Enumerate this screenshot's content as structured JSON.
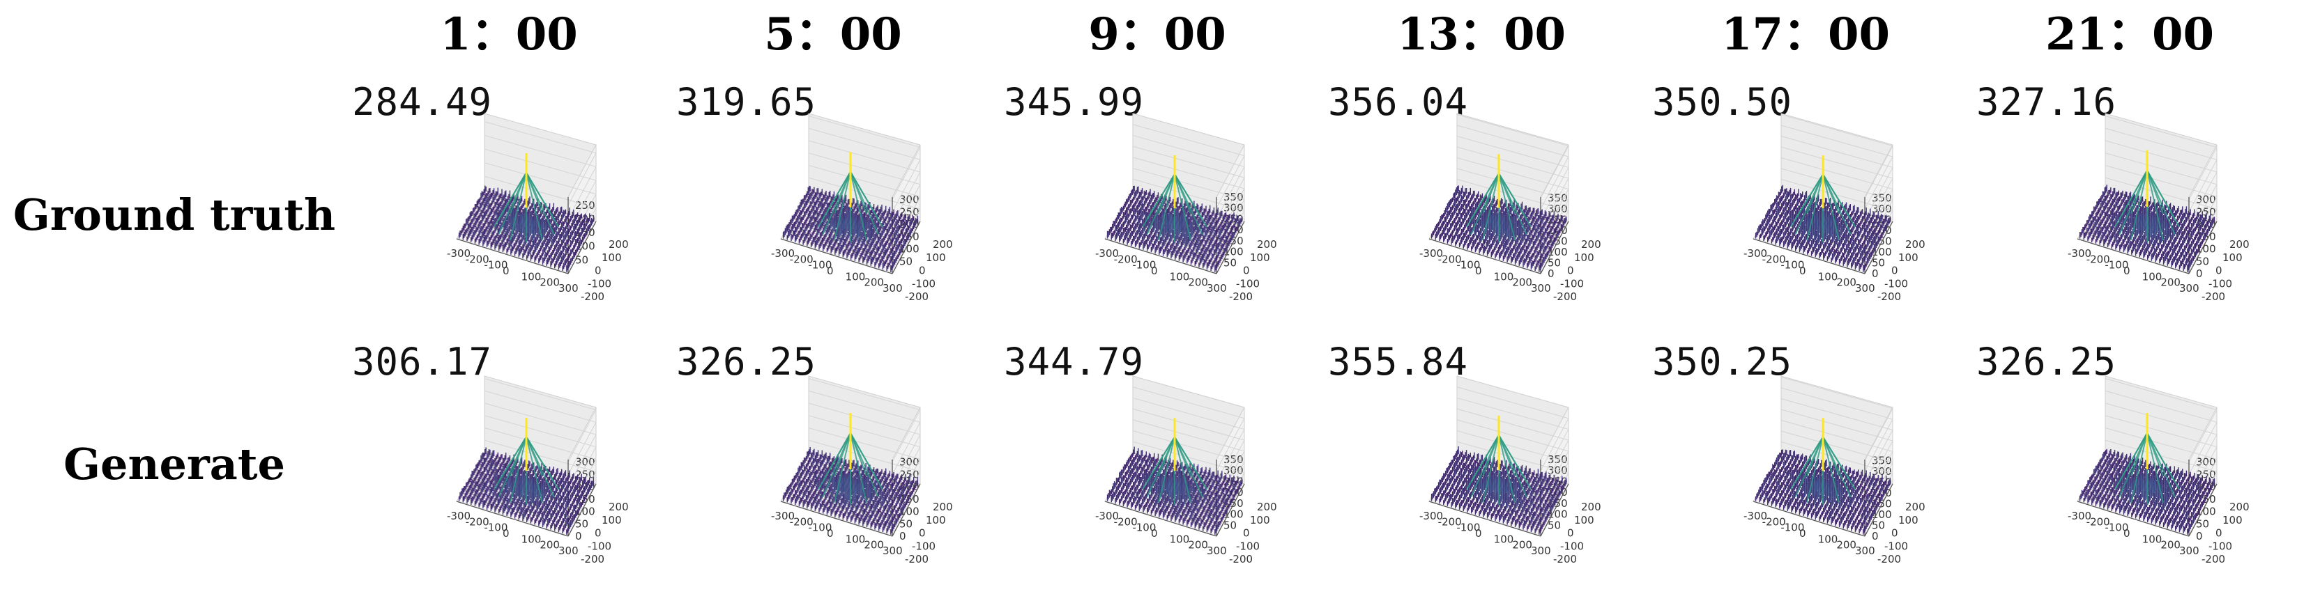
{
  "columns": [
    "1：00",
    "5：00",
    "9：00",
    "13：00",
    "17：00",
    "21：00"
  ],
  "rows": [
    {
      "label": "Ground truth",
      "peaks": [
        "284.49",
        "319.65",
        "345.99",
        "356.04",
        "350.50",
        "327.16"
      ]
    },
    {
      "label": "Generate",
      "peaks": [
        "306.17",
        "326.25",
        "344.79",
        "355.84",
        "350.25",
        "326.25"
      ]
    }
  ],
  "chart_data": {
    "type": "surface3d",
    "x_ticks": [
      "-300",
      "-200",
      "-100",
      "0",
      "100",
      "200",
      "300"
    ],
    "y_ticks": [
      "200",
      "100",
      "0",
      "-100",
      "-200"
    ],
    "xlim": [
      -300,
      300
    ],
    "ylim": [
      -200,
      200
    ],
    "colormap": "viridis",
    "panels": [
      [
        {
          "peak": 284.49,
          "z_ticks": [
            "250",
            "200",
            "150",
            "100",
            "50"
          ],
          "zlim": [
            0,
            280
          ]
        },
        {
          "peak": 319.65,
          "z_ticks": [
            "300",
            "250",
            "200",
            "150",
            "100",
            "50"
          ],
          "zlim": [
            0,
            310
          ]
        },
        {
          "peak": 345.99,
          "z_ticks": [
            "350",
            "300",
            "250",
            "200",
            "150",
            "100",
            "50"
          ],
          "zlim": [
            0,
            350
          ]
        },
        {
          "peak": 356.04,
          "z_ticks": [
            "350",
            "300",
            "250",
            "200",
            "150",
            "100",
            "50",
            "0"
          ],
          "zlim": [
            0,
            355
          ]
        },
        {
          "peak": 350.5,
          "z_ticks": [
            "350",
            "300",
            "250",
            "200",
            "150",
            "100",
            "50",
            "0"
          ],
          "zlim": [
            0,
            355
          ]
        },
        {
          "peak": 327.16,
          "z_ticks": [
            "300",
            "250",
            "200",
            "150",
            "100",
            "50",
            "0"
          ],
          "zlim": [
            0,
            310
          ]
        }
      ],
      [
        {
          "peak": 306.17,
          "z_ticks": [
            "300",
            "250",
            "200",
            "150",
            "100",
            "50",
            "0"
          ],
          "zlim": [
            0,
            310
          ]
        },
        {
          "peak": 326.25,
          "z_ticks": [
            "300",
            "250",
            "200",
            "150",
            "100",
            "50",
            "0"
          ],
          "zlim": [
            0,
            310
          ]
        },
        {
          "peak": 344.79,
          "z_ticks": [
            "350",
            "300",
            "250",
            "200",
            "150",
            "100",
            "50"
          ],
          "zlim": [
            0,
            350
          ]
        },
        {
          "peak": 355.84,
          "z_ticks": [
            "350",
            "300",
            "250",
            "200",
            "150",
            "100",
            "50"
          ],
          "zlim": [
            0,
            350
          ]
        },
        {
          "peak": 350.25,
          "z_ticks": [
            "350",
            "300",
            "250",
            "200",
            "150",
            "100",
            "50",
            "0"
          ],
          "zlim": [
            0,
            355
          ]
        },
        {
          "peak": 326.25,
          "z_ticks": [
            "300",
            "250",
            "200",
            "150",
            "100",
            "50",
            "0"
          ],
          "zlim": [
            0,
            310
          ]
        }
      ]
    ]
  }
}
